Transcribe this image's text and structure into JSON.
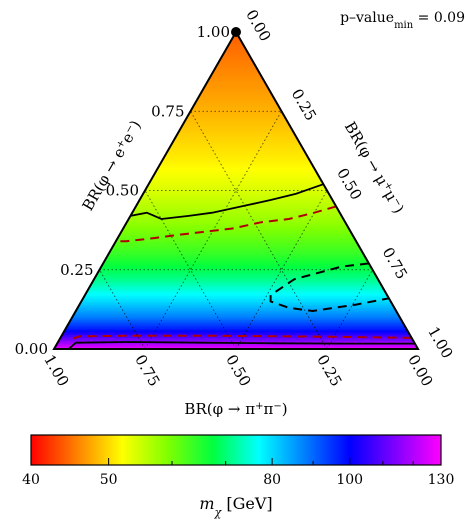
{
  "chart_data": {
    "type": "ternary-heatmap",
    "annotation": "p–value",
    "annotation_sub": "min",
    "annotation_value": " = 0.09",
    "axes": {
      "ee": {
        "label": "BR(φ → e⁺e⁻)",
        "label_prefix": "BR(φ → e",
        "sup1": "+",
        "mid": "e",
        "sup2": "−",
        "suffix": ")",
        "ticks": [
          "0.00",
          "0.25",
          "0.50",
          "0.75",
          "1.00"
        ]
      },
      "mumu": {
        "label": "BR(φ → μ⁺μ⁻)",
        "label_prefix": "BR(φ → μ",
        "sup1": "+",
        "mid": "μ",
        "sup2": "−",
        "suffix": ")",
        "ticks": [
          "0.00",
          "0.25",
          "0.50",
          "0.75",
          "1.00"
        ]
      },
      "pipi": {
        "label": "BR(φ → π⁺π⁻)",
        "label_prefix": "BR(φ → π",
        "sup1": "+",
        "mid": "π",
        "sup2": "−",
        "suffix": ")",
        "ticks": [
          "1.00",
          "0.75",
          "0.50",
          "0.25",
          "0.00"
        ]
      }
    },
    "grid": true,
    "best_fit": {
      "ee": 1.0,
      "mumu": 0.0,
      "pipi": 0.0
    },
    "color_map": {
      "variable": "m_χ [GeV]",
      "label_base": "m",
      "label_sub": "χ",
      "label_unit": " [GeV]",
      "min": 40,
      "max": 130,
      "ticks": [
        "40",
        "50",
        "80",
        "100",
        "130"
      ],
      "tick_values": [
        40,
        50,
        80,
        100,
        130
      ],
      "scale": "log",
      "colors": [
        "#ff0000",
        "#ff8000",
        "#ffff00",
        "#80ff00",
        "#00ff40",
        "#00ffff",
        "#0080ff",
        "#0000ff",
        "#8000ff",
        "#ff00ff"
      ]
    },
    "mass_vs_ee": [
      [
        0.0,
        128
      ],
      [
        0.03,
        112
      ],
      [
        0.06,
        98
      ],
      [
        0.1,
        88
      ],
      [
        0.15,
        80
      ],
      [
        0.22,
        71
      ],
      [
        0.3,
        64
      ],
      [
        0.4,
        58
      ],
      [
        0.5,
        54
      ],
      [
        0.6,
        51
      ],
      [
        0.75,
        48
      ],
      [
        1.0,
        44
      ]
    ],
    "contour_solid": [
      [
        [
          0.52,
          0.48
        ],
        [
          0.49,
          0.42
        ],
        [
          0.47,
          0.36
        ],
        [
          0.45,
          0.29
        ],
        [
          0.43,
          0.22
        ],
        [
          0.42,
          0.16
        ],
        [
          0.41,
          0.09
        ],
        [
          0.43,
          0.04
        ],
        [
          0.42,
          0.0
        ]
      ],
      [
        [
          0.017,
          0.983
        ],
        [
          0.017,
          0.8
        ],
        [
          0.018,
          0.6
        ],
        [
          0.02,
          0.4
        ],
        [
          0.022,
          0.2
        ],
        [
          0.02,
          0.05
        ],
        [
          0.0,
          0.04
        ]
      ]
    ],
    "contour_dashed_red": [
      [
        [
          0.45,
          0.55
        ],
        [
          0.43,
          0.5
        ],
        [
          0.41,
          0.44
        ],
        [
          0.4,
          0.37
        ],
        [
          0.38,
          0.3
        ],
        [
          0.37,
          0.23
        ],
        [
          0.36,
          0.16
        ],
        [
          0.35,
          0.1
        ],
        [
          0.34,
          0.03
        ],
        [
          0.34,
          0.0
        ]
      ],
      [
        [
          0.035,
          0.965
        ],
        [
          0.038,
          0.8
        ],
        [
          0.04,
          0.6
        ],
        [
          0.042,
          0.4
        ],
        [
          0.042,
          0.2
        ],
        [
          0.04,
          0.05
        ],
        [
          0.03,
          0.03
        ]
      ]
    ],
    "contour_dashed_black": [
      [
        [
          0.27,
          0.73
        ],
        [
          0.26,
          0.66
        ],
        [
          0.22,
          0.55
        ],
        [
          0.17,
          0.51
        ],
        [
          0.15,
          0.52
        ],
        [
          0.13,
          0.58
        ],
        [
          0.12,
          0.65
        ],
        [
          0.14,
          0.76
        ],
        [
          0.16,
          0.84
        ]
      ]
    ]
  }
}
